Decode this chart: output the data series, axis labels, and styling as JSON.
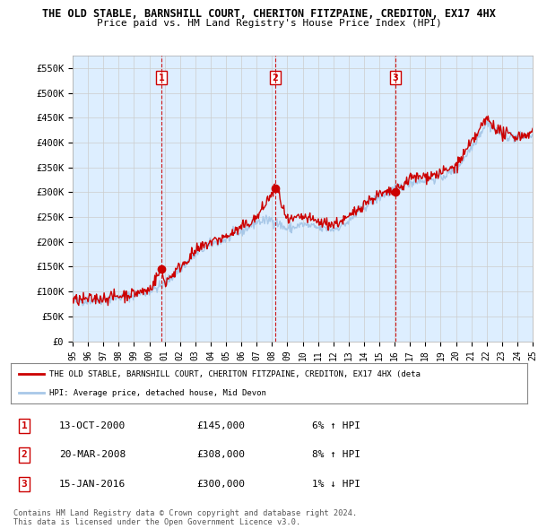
{
  "title_line1": "THE OLD STABLE, BARNSHILL COURT, CHERITON FITZPAINE, CREDITON, EX17 4HX",
  "title_line2": "Price paid vs. HM Land Registry's House Price Index (HPI)",
  "ylabel_ticks": [
    "£0",
    "£50K",
    "£100K",
    "£150K",
    "£200K",
    "£250K",
    "£300K",
    "£350K",
    "£400K",
    "£450K",
    "£500K",
    "£550K"
  ],
  "ylim": [
    0,
    575000
  ],
  "ytick_values": [
    0,
    50000,
    100000,
    150000,
    200000,
    250000,
    300000,
    350000,
    400000,
    450000,
    500000,
    550000
  ],
  "x_start_year": 1995,
  "x_end_year": 2025,
  "hpi_color": "#a8c8e8",
  "price_color": "#cc0000",
  "sale_marker_color": "#cc0000",
  "vline_color": "#cc0000",
  "grid_color": "#cccccc",
  "bg_color": "#ffffff",
  "chart_bg_color": "#ddeeff",
  "sale1_year": 2000.79,
  "sale1_price": 145000,
  "sale1_label": "1",
  "sale2_year": 2008.22,
  "sale2_price": 308000,
  "sale2_label": "2",
  "sale3_year": 2016.04,
  "sale3_price": 300000,
  "sale3_label": "3",
  "legend_line1": "THE OLD STABLE, BARNSHILL COURT, CHERITON FITZPAINE, CREDITON, EX17 4HX (deta",
  "legend_line2": "HPI: Average price, detached house, Mid Devon",
  "table_rows": [
    {
      "num": "1",
      "date": "13-OCT-2000",
      "price": "£145,000",
      "change": "6% ↑ HPI"
    },
    {
      "num": "2",
      "date": "20-MAR-2008",
      "price": "£308,000",
      "change": "8% ↑ HPI"
    },
    {
      "num": "3",
      "date": "15-JAN-2016",
      "price": "£300,000",
      "change": "1% ↓ HPI"
    }
  ],
  "footer_text": "Contains HM Land Registry data © Crown copyright and database right 2024.\nThis data is licensed under the Open Government Licence v3.0."
}
